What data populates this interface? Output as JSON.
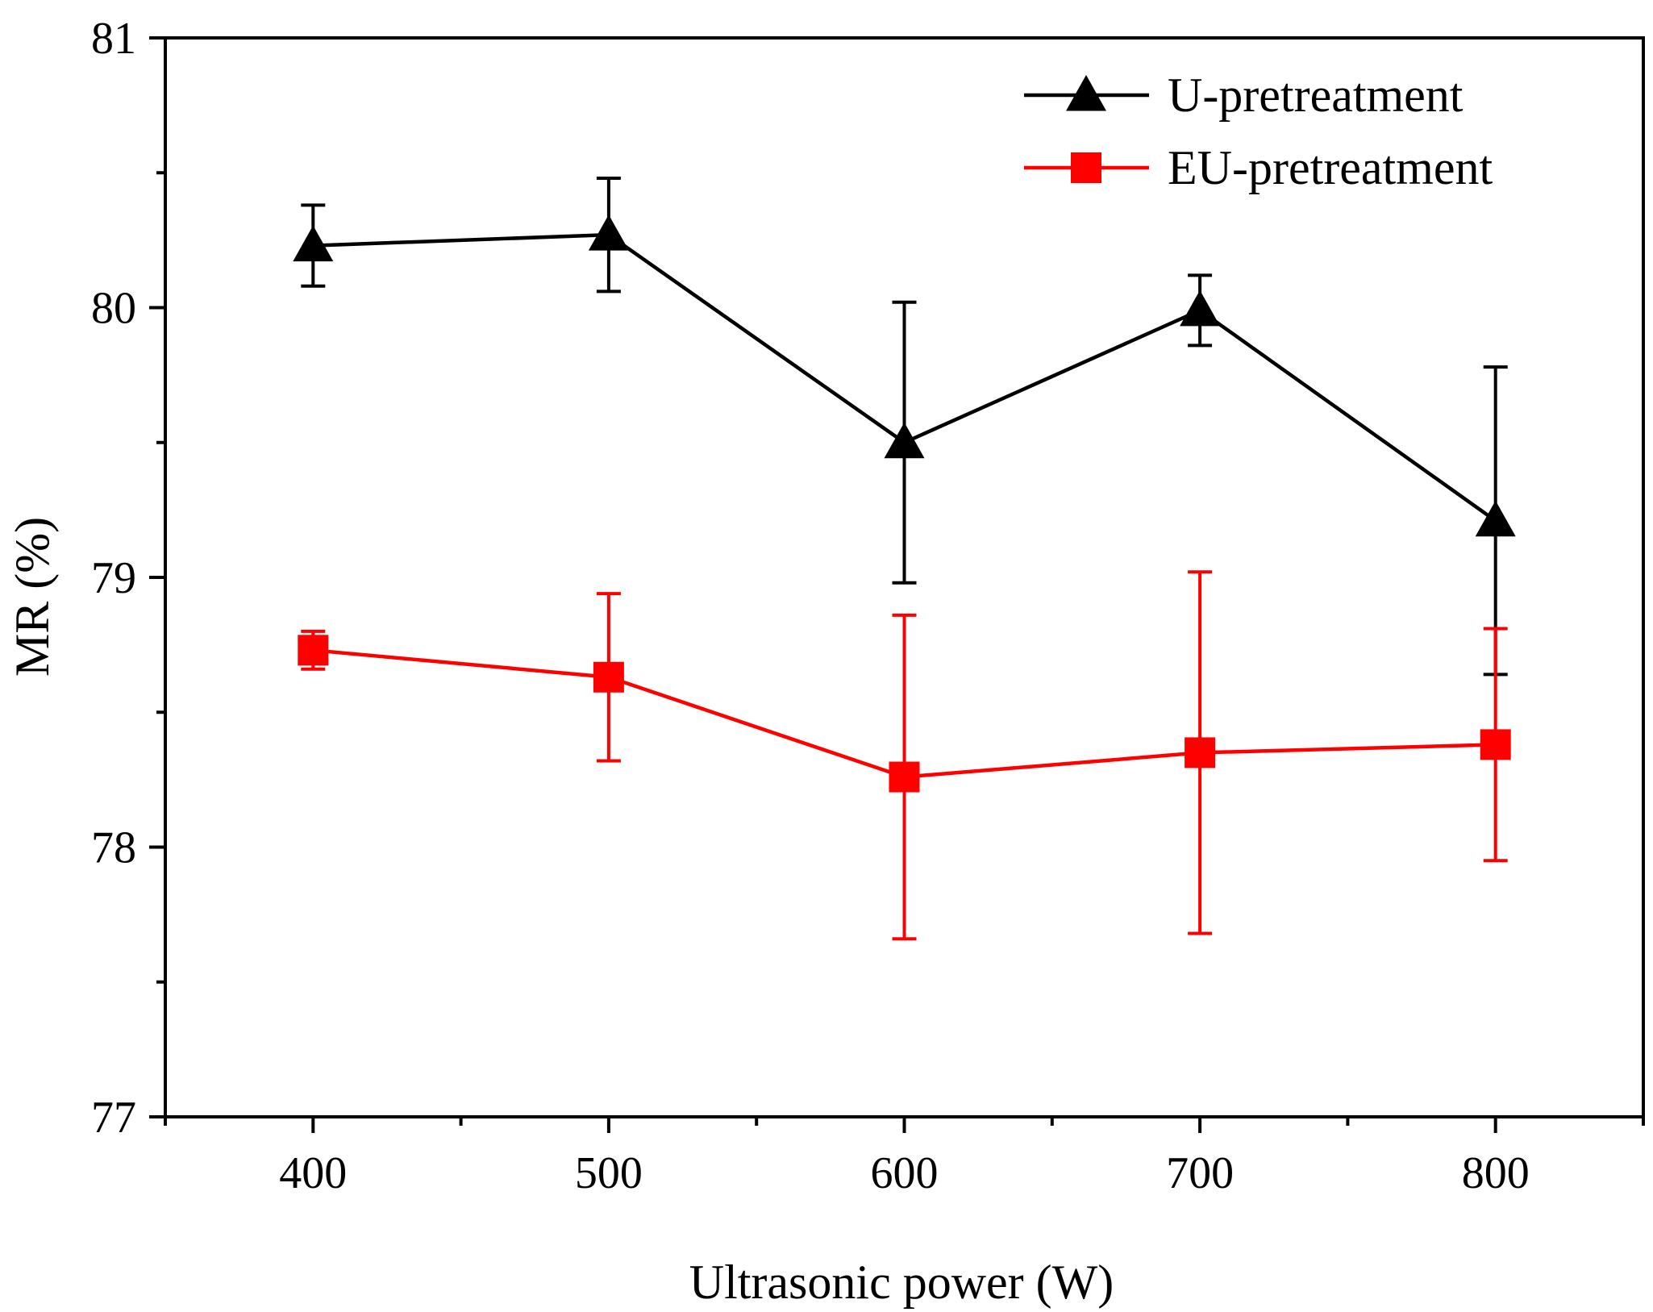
{
  "chart_data": {
    "type": "line",
    "title": "",
    "xlabel": "Ultrasonic power (W)",
    "ylabel": "MR (%)",
    "x": [
      400,
      500,
      600,
      700,
      800
    ],
    "xlim": [
      350,
      850
    ],
    "ylim": [
      77,
      81
    ],
    "x_ticks": [
      400,
      500,
      600,
      700,
      800
    ],
    "x_tick_labels": [
      "400",
      "500",
      "600",
      "700",
      "800"
    ],
    "y_ticks": [
      77,
      78,
      79,
      80,
      81
    ],
    "y_tick_labels": [
      "77",
      "78",
      "79",
      "80",
      "81"
    ],
    "grid": false,
    "legend_position": "top-right",
    "series": [
      {
        "name": "U-pretreatment",
        "color": "#000000",
        "marker": "triangle",
        "values": [
          80.23,
          80.27,
          79.5,
          79.99,
          79.21
        ],
        "error": [
          0.15,
          0.21,
          0.52,
          0.13,
          0.57
        ]
      },
      {
        "name": "EU-pretreatment",
        "color": "#ff0000",
        "marker": "square",
        "values": [
          78.73,
          78.63,
          78.26,
          78.35,
          78.38
        ],
        "error": [
          0.07,
          0.31,
          0.6,
          0.67,
          0.43
        ]
      }
    ]
  }
}
